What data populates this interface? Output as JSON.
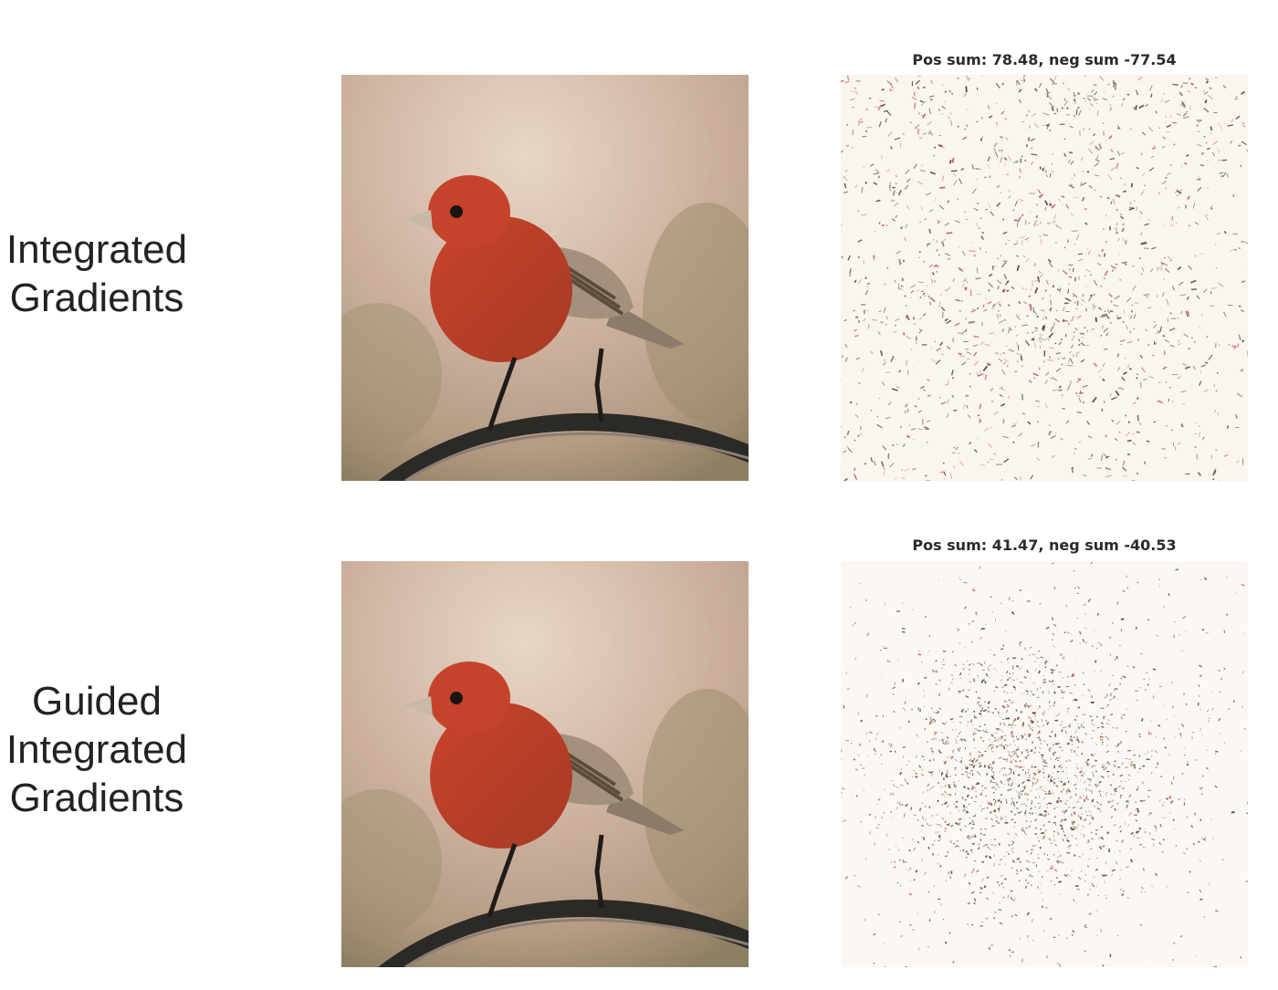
{
  "rows": [
    {
      "label_lines": [
        "Integrated",
        "Gradients"
      ],
      "attribution_title": "Pos sum: 78.48, neg sum -77.54",
      "attribution_spread": "diffuse"
    },
    {
      "label_lines": [
        "Guided",
        "Integrated",
        "Gradients"
      ],
      "attribution_title": "Pos sum: 41.47, neg sum -40.53",
      "attribution_spread": "concentrated"
    }
  ],
  "colors": {
    "bird_red": "#b8412a",
    "background_tan": "#c9ab9a",
    "positive_attr": "#3a2a1e",
    "negative_attr": "#c0352a",
    "label_text": "#222222"
  }
}
